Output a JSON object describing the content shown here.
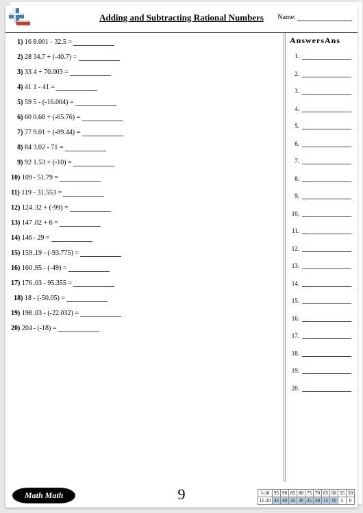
{
  "header": {
    "title": "Adding and Subtracting Rational Numbers",
    "name_label": "Name:"
  },
  "answers_title": "AnswersAns",
  "page_number": "9",
  "badge": "Math Math",
  "logo": {
    "plus_color": "#4a7aa8",
    "minus_color": "#b0483a",
    "highlight": "#d9e4ed"
  },
  "problems": [
    {
      "n": "1)",
      "n2": "16",
      "expr": "8.001 - 32.5 ="
    },
    {
      "n": "2)",
      "n2": "28",
      "expr": "34.7 + (-40.7) ="
    },
    {
      "n": "3)",
      "n2": "33",
      "expr": "4 + 70.003 ="
    },
    {
      "n": "4)",
      "n2": "41",
      "expr": "1 - 41 ="
    },
    {
      "n": "5)",
      "n2": "59",
      "expr": "5 - (-16.004) ="
    },
    {
      "n": "6)",
      "n2": "60",
      "expr": "0.68 + (-65.76) ="
    },
    {
      "n": "7)",
      "n2": "77",
      "expr": "9.01 + (-89.44) ="
    },
    {
      "n": "8)",
      "n2": "84",
      "expr": "3.02 - 71 ="
    },
    {
      "n": "9)",
      "n2": "92",
      "expr": "1.53 + (-10) ="
    },
    {
      "n": "10)",
      "n2": "109",
      "expr": " - 51.79 ="
    },
    {
      "n": "11)",
      "n2": "119",
      "expr": " - 31.553 ="
    },
    {
      "n": "12)",
      "n2": "124",
      "expr": ".32 + (-99) ="
    },
    {
      "n": "13)",
      "n2": "147",
      "expr": ".02 + 6 ="
    },
    {
      "n": "14)",
      "n2": "146",
      "expr": " - 29 ="
    },
    {
      "n": "15)",
      "n2": "159",
      "expr": ".19 - (-93.775) ="
    },
    {
      "n": "16)",
      "n2": "160",
      "expr": ".95 - (-49) ="
    },
    {
      "n": "17)",
      "n2": "176",
      "expr": ".03 - 95.355 ="
    },
    {
      "n": "18)",
      "n2": "18",
      "expr": " - (-50.05) ="
    },
    {
      "n": "19)",
      "n2": "198",
      "expr": ".03 - (-22.032) ="
    },
    {
      "n": "20)",
      "n2": "204",
      "expr": " - (-18) ="
    }
  ],
  "answers": [
    "1.",
    "2.",
    "3.",
    "4.",
    "5.",
    "6.",
    "7.",
    "8.",
    "9.",
    "10.",
    "11.",
    "12.",
    "13.",
    "14.",
    "15.",
    "16.",
    "17.",
    "18.",
    "19.",
    "20."
  ],
  "score": {
    "row_labels": [
      "1-10",
      "11-20"
    ],
    "r1": [
      "95",
      "90",
      "85",
      "80",
      "75",
      "70",
      "65",
      "60",
      "55",
      "50"
    ],
    "r2": [
      "45",
      "40",
      "35",
      "30",
      "25",
      "20",
      "15",
      "10",
      "5",
      "0"
    ]
  }
}
